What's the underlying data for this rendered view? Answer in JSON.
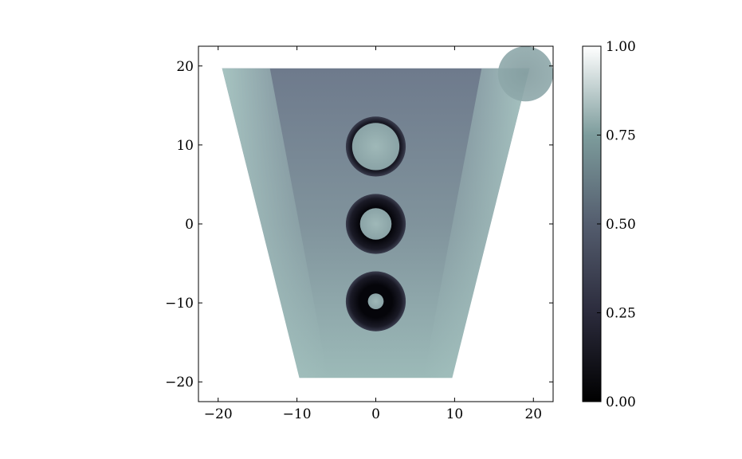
{
  "chart_data": {
    "type": "heatmap",
    "title": "",
    "xlabel": "",
    "ylabel": "",
    "xlim": [
      -22.5,
      22.5
    ],
    "ylim": [
      -22.5,
      22.5
    ],
    "x_ticks": [
      -20,
      -10,
      0,
      10,
      20
    ],
    "y_ticks": [
      -20,
      -10,
      0,
      10,
      20
    ],
    "x_tick_labels": [
      "−20",
      "−10",
      "0",
      "10",
      "20"
    ],
    "y_tick_labels": [
      "−20",
      "−10",
      "0",
      "10",
      "20"
    ],
    "grid": false,
    "colormap": "bone",
    "colorbar": {
      "range": [
        0,
        1
      ],
      "ticks": [
        0,
        0.25,
        0.5,
        0.75,
        1
      ],
      "tick_labels": [
        "0.00",
        "0.25",
        "0.50",
        "0.75",
        "1.00"
      ],
      "colors": [
        "#000000",
        "#2b2b3c",
        "#545d6e",
        "#7d9c9c",
        "#ffffff"
      ]
    },
    "background_value": 1.0,
    "trapezoid": {
      "top_y": 19.7,
      "bottom_y": -19.5,
      "top_x": [
        -19.5,
        19.5
      ],
      "bottom_x": [
        -9.7,
        9.7
      ],
      "center_value_top": 0.45,
      "center_value_bottom": 0.62,
      "edge_value": 0.72
    },
    "holes": [
      {
        "cx": 0,
        "cy": 9.8,
        "outer_r": 3.8,
        "inner_r": 3.0,
        "ring_value": 0.1,
        "core_value": 0.7
      },
      {
        "cx": 0,
        "cy": 0,
        "outer_r": 3.8,
        "inner_r": 2.0,
        "ring_value": 0.08,
        "core_value": 0.7
      },
      {
        "cx": 0,
        "cy": -9.8,
        "outer_r": 3.8,
        "inner_r": 1.0,
        "ring_value": 0.05,
        "core_value": 0.7
      }
    ],
    "corner_disk": {
      "cx": 19.0,
      "cy": 19.0,
      "r": 3.5,
      "value": 0.6
    }
  }
}
